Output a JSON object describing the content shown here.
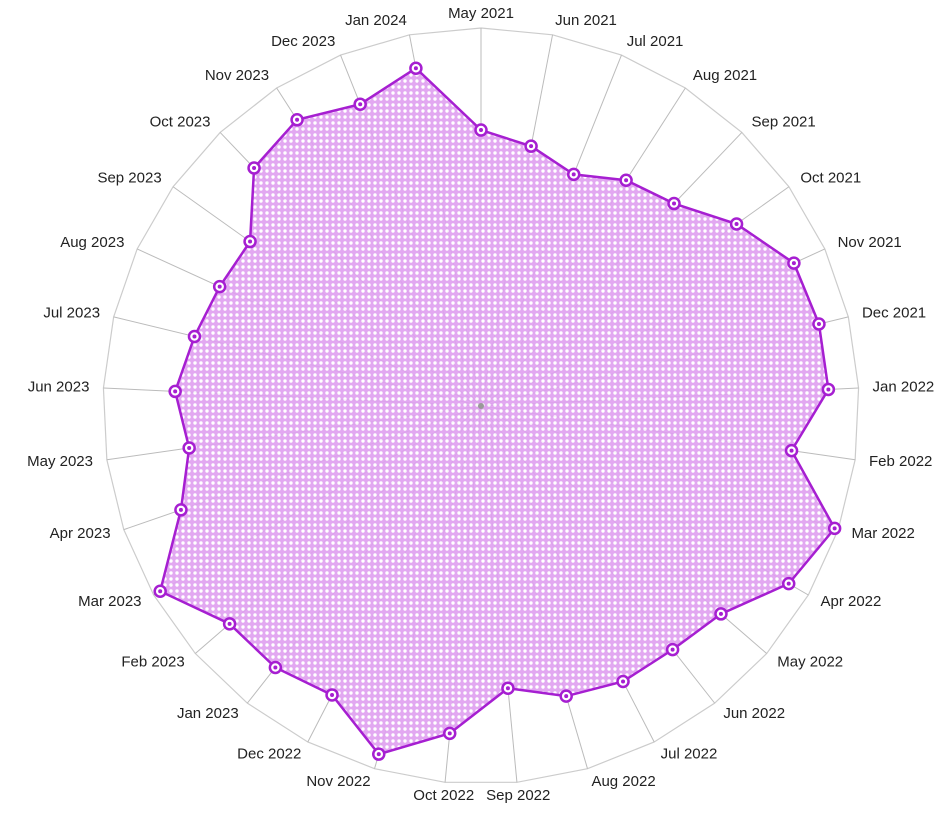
{
  "chart_data": {
    "type": "radar",
    "categories": [
      "May 2021",
      "Jun 2021",
      "Jul 2021",
      "Aug 2021",
      "Sep 2021",
      "Oct 2021",
      "Nov 2021",
      "Dec 2021",
      "Jan 2022",
      "Feb 2022",
      "Mar 2022",
      "Apr 2022",
      "May 2022",
      "Jun 2022",
      "Jul 2022",
      "Aug 2022",
      "Sep 2022",
      "Oct 2022",
      "Nov 2022",
      "Dec 2022",
      "Jan 2023",
      "Feb 2023",
      "Mar 2023",
      "Apr 2023",
      "May 2023",
      "Jun 2023",
      "Jul 2023",
      "Aug 2023",
      "Sep 2023",
      "Oct 2023",
      "Nov 2023",
      "Dec 2023",
      "Jan 2024"
    ],
    "values": [
      73,
      70,
      66,
      71,
      74,
      83,
      91,
      92,
      92,
      83,
      99,
      94,
      84,
      82,
      82,
      80,
      75,
      87,
      96,
      86,
      88,
      88,
      98,
      84,
      78,
      81,
      78,
      76,
      75,
      87,
      90,
      86,
      91
    ],
    "color": "#a61fd1",
    "ylim": [
      0,
      100
    ]
  }
}
